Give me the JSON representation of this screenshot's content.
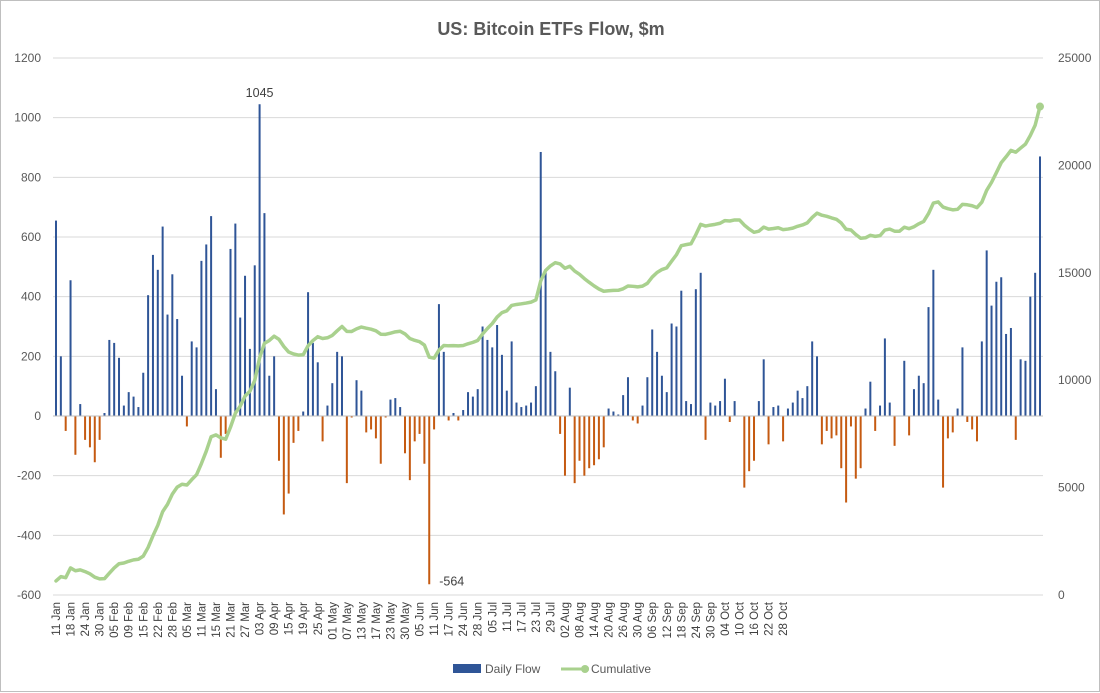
{
  "chart_data": {
    "type": "bar+line",
    "title": "US: Bitcoin ETFs Flow, $m",
    "y_left": {
      "min": -600,
      "max": 1200,
      "step": 200
    },
    "y_right": {
      "min": 0,
      "max": 25000,
      "step": 5000
    },
    "x_labels": [
      "11 Jan",
      "18 Jan",
      "24 Jan",
      "30 Jan",
      "05 Feb",
      "09 Feb",
      "15 Feb",
      "22 Feb",
      "28 Feb",
      "05 Mar",
      "11 Mar",
      "15 Mar",
      "21 Mar",
      "27 Mar",
      "03 Apr",
      "09 Apr",
      "15 Apr",
      "19 Apr",
      "25 Apr",
      "01 May",
      "07 May",
      "13 May",
      "17 May",
      "23 May",
      "30 May",
      "05 Jun",
      "11 Jun",
      "17 Jun",
      "24 Jun",
      "28 Jun",
      "05 Jul",
      "11 Jul",
      "17 Jul",
      "23 Jul",
      "29 Jul",
      "02 Aug",
      "08 Aug",
      "14 Aug",
      "20 Aug",
      "26 Aug",
      "30 Aug",
      "06 Sep",
      "12 Sep",
      "18 Sep",
      "24 Sep",
      "30 Sep",
      "04 Oct",
      "10 Oct",
      "16 Oct",
      "22 Oct",
      "28 Oct"
    ],
    "label_every": 3,
    "series": [
      {
        "name": "Daily Flow",
        "type": "bar",
        "color": "#2f5597",
        "negative_color": "#c55a11",
        "values": [
          655,
          200,
          -50,
          455,
          -130,
          40,
          -80,
          -105,
          -155,
          -80,
          10,
          255,
          245,
          195,
          35,
          80,
          65,
          30,
          145,
          405,
          540,
          490,
          635,
          340,
          475,
          325,
          135,
          -35,
          250,
          230,
          520,
          575,
          670,
          90,
          -140,
          -60,
          560,
          645,
          330,
          470,
          225,
          505,
          1045,
          680,
          135,
          200,
          -150,
          -330,
          -260,
          -90,
          -50,
          15,
          415,
          245,
          180,
          -85,
          35,
          110,
          215,
          200,
          -225,
          -5,
          120,
          85,
          -55,
          -45,
          -75,
          -160,
          -5,
          55,
          60,
          30,
          -125,
          -215,
          -85,
          -60,
          -160,
          -564,
          -45,
          375,
          215,
          -15,
          10,
          -15,
          20,
          80,
          65,
          90,
          300,
          255,
          230,
          305,
          205,
          85,
          250,
          45,
          30,
          35,
          45,
          100,
          885,
          485,
          215,
          150,
          -60,
          -200,
          95,
          -225,
          -150,
          -200,
          -175,
          -165,
          -145,
          -105,
          25,
          15,
          5,
          70,
          130,
          -15,
          -25,
          35,
          130,
          290,
          215,
          135,
          80,
          310,
          300,
          420,
          50,
          40,
          425,
          480,
          -80,
          45,
          35,
          50,
          125,
          -20,
          50,
          0,
          -240,
          -185,
          -150,
          50,
          190,
          -95,
          30,
          35,
          -85,
          25,
          45,
          85,
          60,
          100,
          250,
          200,
          -95,
          -50,
          -75,
          -65,
          -175,
          -290,
          -35,
          -210,
          -175,
          25,
          115,
          -50,
          35,
          260,
          45,
          -100,
          0,
          185,
          -65,
          90,
          135,
          110,
          365,
          490,
          55,
          -240,
          -75,
          -55,
          25,
          230,
          -20,
          -45,
          -85,
          250,
          555,
          370,
          450,
          465,
          275,
          295,
          -80,
          190,
          185,
          400,
          480,
          870
        ]
      },
      {
        "name": "Cumulative",
        "type": "line",
        "color": "#a9d18e",
        "values": [
          655,
          855,
          805,
          1260,
          1130,
          1170,
          1090,
          985,
          830,
          750,
          760,
          1015,
          1260,
          1455,
          1490,
          1570,
          1635,
          1665,
          1810,
          2215,
          2755,
          3245,
          3880,
          4220,
          4695,
          5020,
          5155,
          5120,
          5370,
          5600,
          6120,
          6695,
          7365,
          7455,
          7315,
          7255,
          7815,
          8460,
          8790,
          9260,
          9485,
          9990,
          11035,
          11715,
          11850,
          12050,
          11900,
          11570,
          11310,
          11220,
          11170,
          11185,
          11600,
          11845,
          12025,
          11940,
          11975,
          12085,
          12300,
          12500,
          12275,
          12270,
          12390,
          12475,
          12420,
          12375,
          12300,
          12140,
          12135,
          12190,
          12250,
          12280,
          12155,
          11940,
          11855,
          11795,
          11635,
          11071,
          11026,
          11401,
          11616,
          11601,
          11611,
          11596,
          11616,
          11696,
          11761,
          11851,
          12151,
          12406,
          12636,
          12941,
          13146,
          13231,
          13481,
          13526,
          13556,
          13591,
          13636,
          13736,
          14621,
          15106,
          15321,
          15471,
          15411,
          15211,
          15306,
          15081,
          14931,
          14731,
          14556,
          14391,
          14246,
          14141,
          14166,
          14181,
          14186,
          14256,
          14386,
          14371,
          14346,
          14381,
          14511,
          14801,
          15016,
          15151,
          15231,
          15541,
          15841,
          16261,
          16311,
          16351,
          16776,
          17256,
          17176,
          17221,
          17256,
          17306,
          17431,
          17411,
          17461,
          17461,
          17221,
          17036,
          16886,
          16936,
          17126,
          17031,
          17061,
          17096,
          17011,
          17036,
          17081,
          17166,
          17226,
          17326,
          17576,
          17776,
          17681,
          17631,
          17556,
          17491,
          17316,
          17026,
          16991,
          16781,
          16606,
          16631,
          16746,
          16696,
          16731,
          16991,
          17036,
          16936,
          16936,
          17121,
          17056,
          17146,
          17281,
          17391,
          17756,
          18246,
          18301,
          18061,
          17986,
          17931,
          17956,
          18186,
          18166,
          18121,
          18036,
          18286,
          18841,
          19211,
          19661,
          20126,
          20401,
          20696,
          20616,
          20806,
          20991,
          21391,
          21871,
          22741
        ]
      }
    ],
    "annotations": [
      {
        "text": "1045",
        "index": 42,
        "series": 0,
        "position": "above"
      },
      {
        "text": "-564",
        "index": 77,
        "series": 0,
        "position": "below-right"
      }
    ],
    "legend": {
      "position": "bottom",
      "items": [
        "Daily Flow",
        "Cumulative"
      ]
    },
    "grid": true
  }
}
